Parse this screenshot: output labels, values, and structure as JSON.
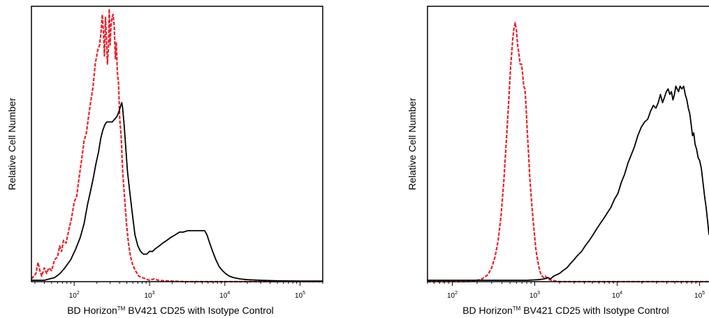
{
  "chart_data": [
    {
      "type": "line",
      "xlabel": "BD Horizon™ BV421 CD25 with Isotype Control",
      "ylabel": "Relative Cell Number",
      "xscale": "log",
      "xlim": [
        27,
        200000
      ],
      "ylim": [
        0,
        100
      ],
      "x_tick_labels": [
        "10²",
        "10³",
        "10⁴",
        "10⁵"
      ],
      "x_ticks": [
        100,
        1000,
        10000,
        100000
      ],
      "grid": false,
      "legend": "none",
      "series": [
        {
          "style": "dashed",
          "color": "#e8202a",
          "points": [
            [
              27,
              1
            ],
            [
              31,
              3
            ],
            [
              33,
              7
            ],
            [
              35,
              4
            ],
            [
              37,
              2
            ],
            [
              40,
              5
            ],
            [
              43,
              3
            ],
            [
              46,
              5
            ],
            [
              50,
              4
            ],
            [
              55,
              8
            ],
            [
              60,
              9
            ],
            [
              64,
              13
            ],
            [
              68,
              11
            ],
            [
              72,
              15
            ],
            [
              78,
              14
            ],
            [
              85,
              19
            ],
            [
              92,
              23
            ],
            [
              100,
              29
            ],
            [
              108,
              31
            ],
            [
              115,
              37
            ],
            [
              125,
              44
            ],
            [
              135,
              51
            ],
            [
              145,
              54
            ],
            [
              155,
              60
            ],
            [
              165,
              65
            ],
            [
              178,
              71
            ],
            [
              190,
              79
            ],
            [
              205,
              84
            ],
            [
              218,
              86
            ],
            [
              228,
              91
            ],
            [
              236,
              97
            ],
            [
              245,
              90
            ],
            [
              252,
              82
            ],
            [
              260,
              96
            ],
            [
              268,
              88
            ],
            [
              276,
              79
            ],
            [
              285,
              85
            ],
            [
              292,
              99
            ],
            [
              300,
              86
            ],
            [
              308,
              93
            ],
            [
              318,
              96
            ],
            [
              328,
              97
            ],
            [
              340,
              93
            ],
            [
              352,
              81
            ],
            [
              362,
              87
            ],
            [
              374,
              76
            ],
            [
              388,
              72
            ],
            [
              402,
              59
            ],
            [
              420,
              53
            ],
            [
              440,
              40
            ],
            [
              465,
              31
            ],
            [
              495,
              21
            ],
            [
              525,
              14
            ],
            [
              560,
              9
            ],
            [
              600,
              6
            ],
            [
              650,
              4
            ],
            [
              720,
              2
            ],
            [
              800,
              1.5
            ],
            [
              900,
              1
            ],
            [
              1000,
              0.5
            ],
            [
              1150,
              1
            ],
            [
              1300,
              0.5
            ],
            [
              1600,
              0.3
            ],
            [
              2000,
              0.2
            ],
            [
              3000,
              0
            ],
            [
              200000,
              0
            ]
          ]
        },
        {
          "style": "solid",
          "color": "#000000",
          "points": [
            [
              27,
              0.5
            ],
            [
              40,
              0.5
            ],
            [
              55,
              1.5
            ],
            [
              65,
              3
            ],
            [
              75,
              5
            ],
            [
              90,
              8
            ],
            [
              105,
              12
            ],
            [
              120,
              16
            ],
            [
              135,
              21
            ],
            [
              150,
              28
            ],
            [
              165,
              33
            ],
            [
              180,
              38
            ],
            [
              195,
              43
            ],
            [
              210,
              47
            ],
            [
              225,
              52
            ],
            [
              240,
              55
            ],
            [
              255,
              57
            ],
            [
              270,
              58
            ],
            [
              285,
              58
            ],
            [
              300,
              58
            ],
            [
              320,
              58
            ],
            [
              345,
              59
            ],
            [
              370,
              60
            ],
            [
              395,
              62
            ],
            [
              415,
              64
            ],
            [
              428,
              65
            ],
            [
              440,
              63
            ],
            [
              460,
              57
            ],
            [
              485,
              48
            ],
            [
              510,
              40
            ],
            [
              545,
              33
            ],
            [
              590,
              25
            ],
            [
              640,
              17
            ],
            [
              700,
              13
            ],
            [
              760,
              11
            ],
            [
              830,
              10
            ],
            [
              920,
              10
            ],
            [
              1000,
              11
            ],
            [
              1100,
              11
            ],
            [
              1200,
              12
            ],
            [
              1350,
              13
            ],
            [
              1500,
              14
            ],
            [
              1700,
              15
            ],
            [
              1900,
              16
            ],
            [
              2200,
              17
            ],
            [
              2500,
              18
            ],
            [
              2800,
              18
            ],
            [
              3200,
              18.5
            ],
            [
              3700,
              18.5
            ],
            [
              4300,
              18.5
            ],
            [
              4800,
              18.5
            ],
            [
              5400,
              18.5
            ],
            [
              5800,
              17
            ],
            [
              6300,
              14
            ],
            [
              6900,
              11
            ],
            [
              7600,
              8
            ],
            [
              8400,
              5.5
            ],
            [
              9300,
              4
            ],
            [
              10200,
              3
            ],
            [
              11500,
              2
            ],
            [
              13000,
              1.5
            ],
            [
              16000,
              1
            ],
            [
              20000,
              0.7
            ],
            [
              30000,
              0.5
            ],
            [
              50000,
              0.3
            ],
            [
              100000,
              0.2
            ],
            [
              200000,
              0.2
            ]
          ]
        }
      ]
    },
    {
      "type": "line",
      "xlabel": "BD Horizon™ BV421 CD25 with Isotype Control",
      "ylabel": "Relative Cell Number",
      "xscale": "log",
      "xlim": [
        50,
        130000
      ],
      "ylim": [
        0,
        100
      ],
      "x_tick_labels": [
        "10²",
        "10³",
        "10⁴",
        "10⁵"
      ],
      "x_ticks": [
        100,
        1000,
        10000,
        100000
      ],
      "grid": false,
      "legend": "none",
      "series": [
        {
          "style": "dashed",
          "color": "#e8202a",
          "points": [
            [
              50,
              0
            ],
            [
              150,
              0
            ],
            [
              190,
              0.3
            ],
            [
              230,
              1
            ],
            [
              270,
              2.5
            ],
            [
              300,
              5
            ],
            [
              330,
              9
            ],
            [
              360,
              15
            ],
            [
              390,
              24
            ],
            [
              420,
              36
            ],
            [
              450,
              50
            ],
            [
              480,
              64
            ],
            [
              510,
              78
            ],
            [
              540,
              88
            ],
            [
              560,
              92
            ],
            [
              580,
              94
            ],
            [
              600,
              91
            ],
            [
              620,
              86
            ],
            [
              640,
              83
            ],
            [
              665,
              79
            ],
            [
              690,
              79
            ],
            [
              710,
              76
            ],
            [
              735,
              71
            ],
            [
              760,
              70
            ],
            [
              785,
              64
            ],
            [
              810,
              55
            ],
            [
              840,
              47
            ],
            [
              870,
              38
            ],
            [
              905,
              31
            ],
            [
              945,
              24
            ],
            [
              985,
              18
            ],
            [
              1030,
              12
            ],
            [
              1080,
              8
            ],
            [
              1130,
              5
            ],
            [
              1180,
              3
            ],
            [
              1230,
              2
            ],
            [
              1290,
              1.5
            ],
            [
              1350,
              2
            ],
            [
              1420,
              1
            ],
            [
              1600,
              0.5
            ],
            [
              2000,
              0
            ],
            [
              130000,
              0
            ]
          ]
        },
        {
          "style": "solid",
          "color": "#000000",
          "points": [
            [
              50,
              0.5
            ],
            [
              800,
              0.5
            ],
            [
              1100,
              0.7
            ],
            [
              1300,
              1
            ],
            [
              1450,
              1.5
            ],
            [
              1550,
              1
            ],
            [
              1700,
              2
            ],
            [
              1850,
              2.5
            ],
            [
              2000,
              3
            ],
            [
              2200,
              4
            ],
            [
              2450,
              5
            ],
            [
              2700,
              6.5
            ],
            [
              3000,
              8
            ],
            [
              3300,
              9.5
            ],
            [
              3700,
              11
            ],
            [
              4100,
              13
            ],
            [
              4600,
              15
            ],
            [
              5100,
              17
            ],
            [
              5600,
              19
            ],
            [
              6200,
              21
            ],
            [
              6900,
              23
            ],
            [
              7600,
              25
            ],
            [
              8400,
              27
            ],
            [
              9300,
              30
            ],
            [
              10200,
              32
            ],
            [
              11200,
              36
            ],
            [
              12300,
              39
            ],
            [
              13500,
              43
            ],
            [
              14800,
              46
            ],
            [
              16200,
              49
            ],
            [
              17800,
              53
            ],
            [
              19500,
              56
            ],
            [
              21500,
              58
            ],
            [
              23500,
              59
            ],
            [
              25500,
              62
            ],
            [
              27500,
              64
            ],
            [
              29500,
              63
            ],
            [
              31500,
              65
            ],
            [
              33500,
              68
            ],
            [
              35500,
              65
            ],
            [
              37500,
              67
            ],
            [
              39500,
              69
            ],
            [
              41500,
              70
            ],
            [
              43500,
              68
            ],
            [
              45500,
              69
            ],
            [
              47500,
              66
            ],
            [
              49500,
              68
            ],
            [
              51500,
              71
            ],
            [
              53500,
              70
            ],
            [
              55500,
              69
            ],
            [
              58000,
              71
            ],
            [
              61000,
              70
            ],
            [
              64000,
              71
            ],
            [
              67000,
              68
            ],
            [
              70000,
              66
            ],
            [
              73000,
              63
            ],
            [
              76000,
              61
            ],
            [
              79000,
              57
            ],
            [
              82000,
              53
            ],
            [
              85000,
              54
            ],
            [
              88000,
              50
            ],
            [
              92000,
              48
            ],
            [
              96000,
              45
            ],
            [
              100000,
              44
            ],
            [
              105000,
              41
            ],
            [
              110000,
              36
            ],
            [
              115000,
              31
            ],
            [
              120000,
              27
            ],
            [
              125000,
              22
            ],
            [
              130000,
              17
            ]
          ]
        }
      ]
    }
  ]
}
